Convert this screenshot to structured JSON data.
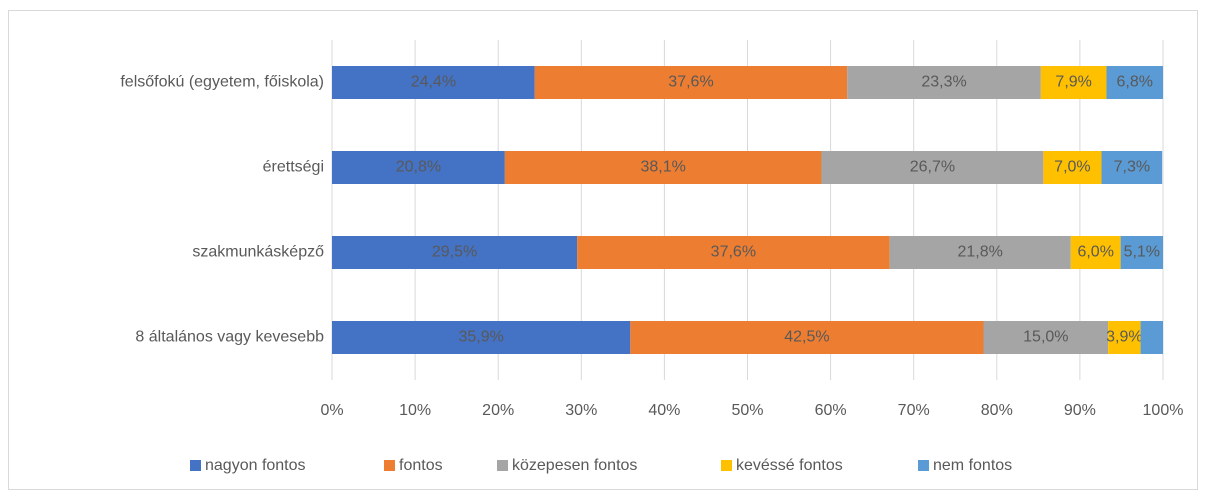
{
  "chart_data": {
    "type": "stacked_barh",
    "categories": [
      "felsőfokú (egyetem, főiskola)",
      "érettségi",
      "szakmunkásképző",
      "8 általános vagy kevesebb"
    ],
    "series": [
      {
        "name": "nagyon fontos",
        "color": "#4472c4",
        "values": [
          24.4,
          20.8,
          29.5,
          35.9
        ],
        "value_labels": [
          "24,4%",
          "20,8%",
          "29,5%",
          "35,9%"
        ]
      },
      {
        "name": "fontos",
        "color": "#ed7d31",
        "values": [
          37.6,
          38.1,
          37.6,
          42.5
        ],
        "value_labels": [
          "37,6%",
          "38,1%",
          "37,6%",
          "42,5%"
        ]
      },
      {
        "name": "közepesen fontos",
        "color": "#a5a5a5",
        "values": [
          23.3,
          26.7,
          21.8,
          15.0
        ],
        "value_labels": [
          "23,3%",
          "26,7%",
          "21,8%",
          "15,0%"
        ]
      },
      {
        "name": "kevéssé fontos",
        "color": "#ffc000",
        "values": [
          7.9,
          7.0,
          6.0,
          3.9
        ],
        "value_labels": [
          "7,9%",
          "7,0%",
          "6,0%",
          "3,9%"
        ]
      },
      {
        "name": "nem fontos",
        "color": "#5b9bd5",
        "values": [
          6.8,
          7.3,
          5.1,
          2.7
        ],
        "value_labels": [
          "6,8%",
          "7,3%",
          "5,1%",
          null
        ]
      }
    ],
    "xlim": [
      0,
      100
    ],
    "xticks": [
      {
        "value": 0,
        "label": "0%"
      },
      {
        "value": 10,
        "label": "10%"
      },
      {
        "value": 20,
        "label": "20%"
      },
      {
        "value": 30,
        "label": "30%"
      },
      {
        "value": 40,
        "label": "40%"
      },
      {
        "value": 50,
        "label": "50%"
      },
      {
        "value": 60,
        "label": "60%"
      },
      {
        "value": 70,
        "label": "70%"
      },
      {
        "value": 80,
        "label": "80%"
      },
      {
        "value": 90,
        "label": "90%"
      },
      {
        "value": 100,
        "label": "100%"
      }
    ],
    "grid": true,
    "legend": "bottom"
  }
}
